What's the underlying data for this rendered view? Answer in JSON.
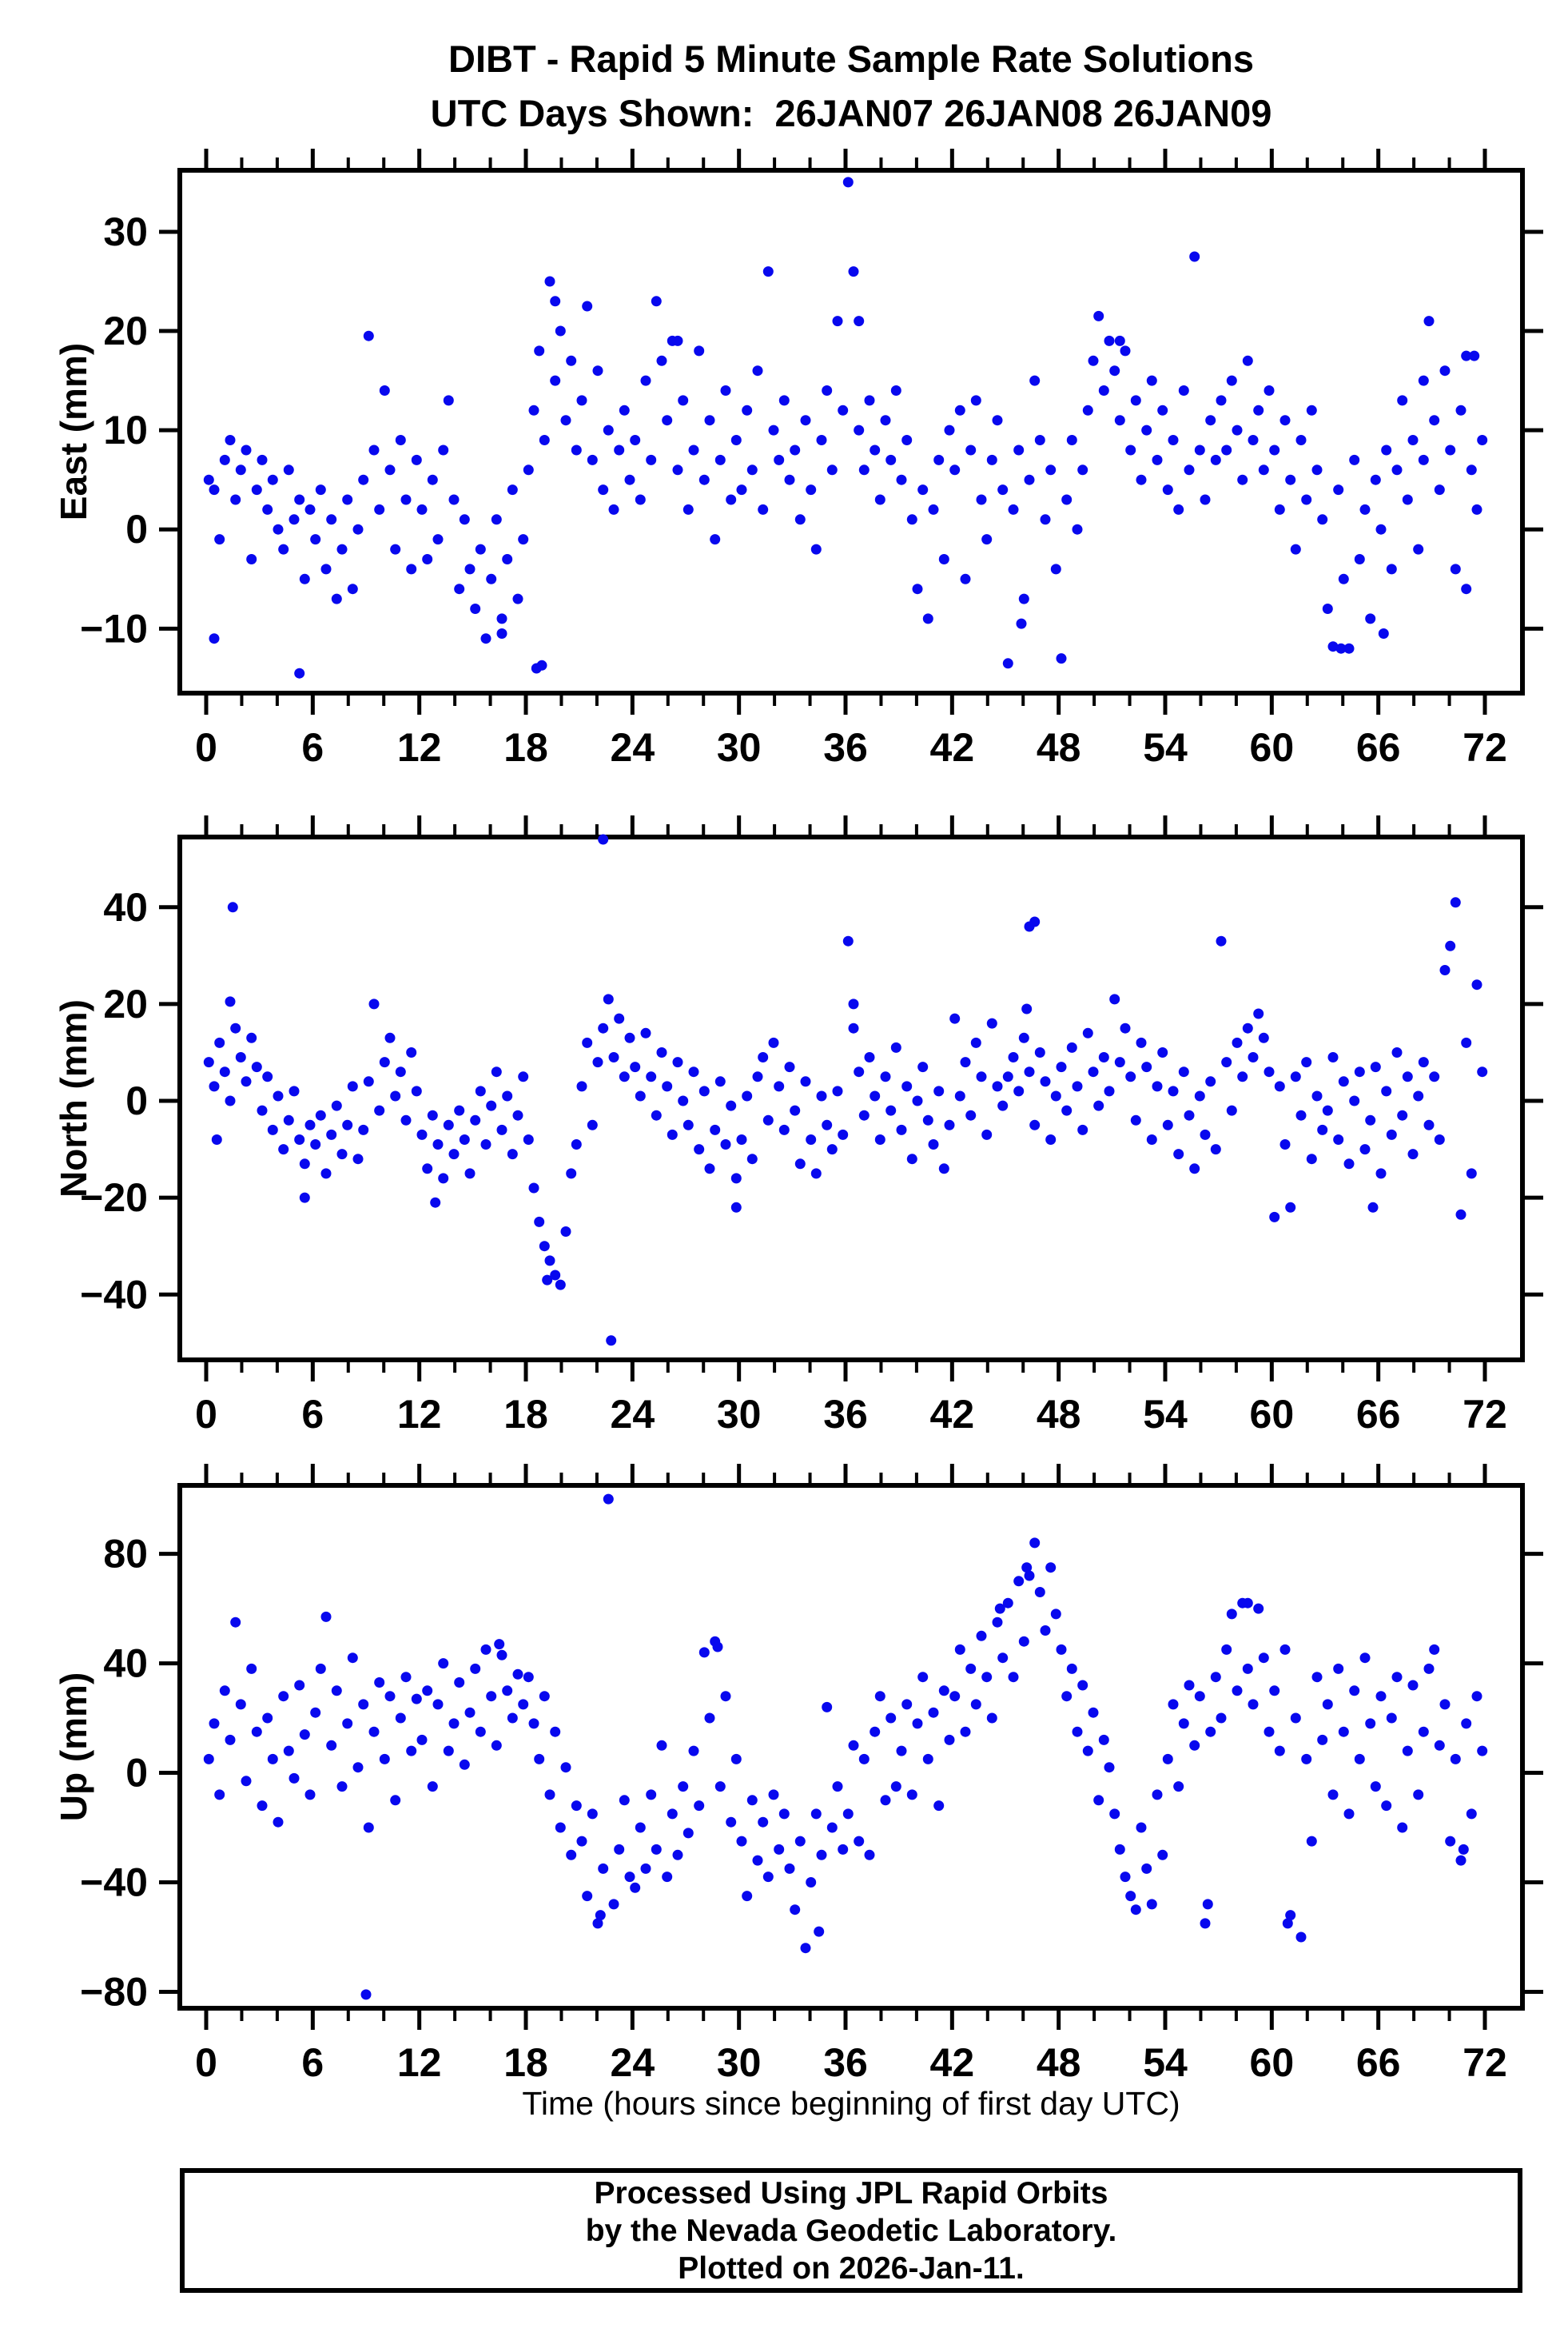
{
  "title": {
    "line1": "DIBT - Rapid 5 Minute Sample Rate Solutions",
    "line2": "UTC Days Shown:  26JAN07 26JAN08 26JAN09"
  },
  "x_axis": {
    "label": "Time (hours since beginning of first day UTC)",
    "range": [
      -1.5,
      74.1
    ],
    "ticks_major": [
      0,
      6,
      12,
      18,
      24,
      30,
      36,
      42,
      48,
      54,
      60,
      66,
      72
    ],
    "minor_step": 2
  },
  "footer": {
    "line1": "Processed Using JPL Rapid Orbits",
    "line2": "by the Nevada Geodetic Laboratory.",
    "line3": "Plotted on 2026-Jan-11."
  },
  "style": {
    "marker_color": "#0808EE",
    "axis_color": "#000000",
    "background": "#ffffff",
    "marker_radius": 6.5
  },
  "chart_data": [
    {
      "type": "scatter",
      "name": "east",
      "ylabel": "East (mm)",
      "ylim": [
        -16.5,
        36.2
      ],
      "yticks": [
        30,
        20,
        10,
        0,
        -10
      ],
      "x_start": 0.15,
      "x_step": 0.3,
      "values": [
        5,
        4,
        -1,
        7,
        9,
        3,
        6,
        8,
        -3,
        4,
        7,
        2,
        5,
        0,
        -2,
        6,
        1,
        3,
        -5,
        2,
        -1,
        4,
        -4,
        1,
        -7,
        -2,
        3,
        -6,
        0,
        5,
        19.5,
        8,
        2,
        14,
        6,
        -2,
        9,
        3,
        -4,
        7,
        2,
        -3,
        5,
        -1,
        8,
        13,
        3,
        -6,
        1,
        -4,
        -8,
        -2,
        -11,
        -5,
        1,
        -9,
        -3,
        4,
        -7,
        -1,
        6,
        12,
        18,
        9,
        25,
        15,
        20,
        11,
        17,
        8,
        13,
        22.5,
        7,
        16,
        4,
        10,
        2,
        8,
        12,
        5,
        9,
        3,
        15,
        7,
        23,
        17,
        11,
        19,
        6,
        13,
        2,
        8,
        18,
        5,
        11,
        -1,
        7,
        14,
        3,
        9,
        4,
        12,
        6,
        16,
        2,
        26,
        10,
        7,
        13,
        5,
        8,
        1,
        11,
        4,
        -2,
        9,
        14,
        6,
        21,
        12,
        35,
        26,
        10,
        6,
        13,
        8,
        3,
        11,
        7,
        14,
        5,
        9,
        1,
        -6,
        4,
        -9,
        2,
        7,
        -3,
        10,
        6,
        12,
        -5,
        8,
        13,
        3,
        -1,
        7,
        11,
        4,
        -13.5,
        2,
        8,
        -7,
        5,
        15,
        9,
        1,
        6,
        -4,
        -13,
        3,
        9,
        0,
        6,
        12,
        17,
        21.5,
        14,
        19,
        16,
        11,
        18,
        8,
        13,
        5,
        10,
        15,
        7,
        12,
        4,
        9,
        2,
        14,
        6,
        27.5,
        8,
        3,
        11,
        7,
        13,
        8,
        15,
        10,
        5,
        17,
        9,
        12,
        6,
        14,
        8,
        2,
        11,
        5,
        -2,
        9,
        3,
        12,
        6,
        1,
        -8,
        -11.8,
        4,
        -5,
        -12,
        7,
        -3,
        2,
        -9,
        5,
        0,
        8,
        -4,
        6,
        13,
        3,
        9,
        -2,
        7,
        21,
        11,
        4,
        16,
        8,
        -4,
        12,
        17.5,
        6,
        2,
        9
      ],
      "outliers": [
        [
          0.45,
          -11
        ],
        [
          5.25,
          -14.5
        ],
        [
          16.65,
          -10.5
        ],
        [
          18.6,
          -14
        ],
        [
          18.9,
          -13.7
        ],
        [
          19.65,
          23
        ],
        [
          26.55,
          19
        ],
        [
          36.75,
          21
        ],
        [
          45.9,
          -9.5
        ],
        [
          51.45,
          19
        ],
        [
          63.9,
          -12
        ],
        [
          66.3,
          -10.5
        ],
        [
          68.55,
          15
        ],
        [
          70.95,
          -6
        ],
        [
          71.4,
          17.5
        ]
      ]
    },
    {
      "type": "scatter",
      "name": "north",
      "ylabel": "North (mm)",
      "ylim": [
        -53.5,
        54.5
      ],
      "yticks": [
        40,
        20,
        0,
        -20,
        -40
      ],
      "x_start": 0.15,
      "x_step": 0.3,
      "values": [
        8,
        3,
        12,
        6,
        0,
        15,
        9,
        4,
        13,
        7,
        -2,
        5,
        -6,
        1,
        -10,
        -4,
        2,
        -8,
        -13,
        -5,
        -9,
        -3,
        -15,
        -7,
        -1,
        -11,
        -5,
        3,
        -12,
        -6,
        4,
        20,
        -2,
        8,
        13,
        1,
        6,
        -4,
        10,
        2,
        -7,
        -14,
        -3,
        -9,
        -16,
        -5,
        -11,
        -2,
        -8,
        -15,
        -4,
        2,
        -9,
        -1,
        6,
        -6,
        1,
        -11,
        -3,
        5,
        -8,
        -18,
        -25,
        -30,
        -33,
        -36,
        -38,
        -27,
        -15,
        -9,
        3,
        12,
        -5,
        8,
        15,
        21,
        9,
        17,
        5,
        13,
        7,
        1,
        14,
        5,
        -3,
        10,
        3,
        -7,
        8,
        0,
        -5,
        6,
        -10,
        2,
        -14,
        -6,
        4,
        -9,
        -1,
        -16,
        -8,
        1,
        -12,
        5,
        9,
        -4,
        12,
        3,
        -6,
        7,
        -2,
        -13,
        4,
        -8,
        -15,
        1,
        -5,
        -10,
        2,
        -7,
        33,
        15,
        6,
        -3,
        9,
        1,
        -8,
        5,
        -2,
        11,
        -6,
        3,
        -12,
        0,
        7,
        -4,
        -9,
        2,
        -14,
        -5,
        17,
        1,
        8,
        -3,
        12,
        5,
        -7,
        16,
        3,
        -1,
        5,
        9,
        2,
        13,
        6,
        -5,
        10,
        4,
        -8,
        1,
        7,
        -2,
        11,
        3,
        -6,
        14,
        6,
        -1,
        9,
        2,
        21,
        8,
        15,
        5,
        -4,
        12,
        7,
        -8,
        3,
        10,
        -5,
        2,
        -11,
        6,
        -3,
        -14,
        1,
        -7,
        4,
        -10,
        33,
        8,
        -2,
        12,
        5,
        15,
        9,
        18,
        13,
        6,
        -24,
        3,
        -9,
        -22,
        5,
        -3,
        8,
        -12,
        1,
        -6,
        -2,
        9,
        -8,
        4,
        -13,
        0,
        6,
        -10,
        -4,
        7,
        -15,
        2,
        -7,
        10,
        -3,
        5,
        -11,
        1,
        8,
        -5,
        5,
        -8,
        27,
        32,
        41,
        -23.5,
        12,
        -15,
        24,
        6
      ],
      "outliers": [
        [
          0.6,
          -8
        ],
        [
          1.35,
          20.5
        ],
        [
          1.5,
          40
        ],
        [
          5.55,
          -20
        ],
        [
          12.9,
          -21
        ],
        [
          19.2,
          -37
        ],
        [
          22.35,
          54
        ],
        [
          22.8,
          -49.5
        ],
        [
          29.85,
          -22
        ],
        [
          36.45,
          20
        ],
        [
          46.2,
          19
        ],
        [
          46.35,
          36
        ],
        [
          46.65,
          37
        ],
        [
          65.7,
          -22
        ]
      ]
    },
    {
      "type": "scatter",
      "name": "up",
      "ylabel": "Up (mm)",
      "ylim": [
        -86,
        105
      ],
      "yticks": [
        80,
        40,
        0,
        -40,
        -80
      ],
      "x_start": 0.15,
      "x_step": 0.3,
      "values": [
        5,
        18,
        -8,
        30,
        12,
        55,
        25,
        -3,
        38,
        15,
        -12,
        20,
        5,
        -18,
        28,
        8,
        -2,
        32,
        14,
        -8,
        22,
        38,
        57,
        10,
        30,
        -5,
        18,
        42,
        2,
        25,
        -20,
        15,
        33,
        5,
        28,
        -10,
        20,
        35,
        8,
        27,
        12,
        30,
        -5,
        25,
        40,
        8,
        18,
        33,
        3,
        22,
        38,
        15,
        45,
        28,
        10,
        43,
        30,
        20,
        36,
        25,
        35,
        18,
        5,
        28,
        -8,
        15,
        -20,
        2,
        -30,
        -12,
        -25,
        -45,
        -15,
        -55,
        -35,
        100,
        -48,
        -28,
        -10,
        -38,
        -42,
        -20,
        -35,
        -8,
        -28,
        10,
        -38,
        -15,
        -30,
        -5,
        -22,
        8,
        -12,
        44,
        20,
        48,
        -5,
        28,
        -18,
        5,
        -25,
        -45,
        -10,
        -32,
        -18,
        -38,
        -8,
        -28,
        -15,
        -35,
        -50,
        -25,
        -64,
        -40,
        -15,
        -30,
        24,
        -20,
        -5,
        -28,
        -15,
        10,
        -25,
        5,
        -30,
        15,
        28,
        -10,
        20,
        -5,
        8,
        25,
        -8,
        18,
        35,
        5,
        22,
        -12,
        30,
        12,
        28,
        45,
        15,
        38,
        25,
        50,
        35,
        20,
        55,
        42,
        62,
        35,
        70,
        48,
        72,
        84,
        66,
        52,
        75,
        58,
        45,
        28,
        38,
        15,
        32,
        8,
        22,
        -10,
        12,
        2,
        -15,
        -28,
        -38,
        -45,
        -50,
        -20,
        -35,
        -48,
        -8,
        -30,
        5,
        25,
        -5,
        18,
        32,
        10,
        28,
        -55,
        15,
        35,
        20,
        45,
        58,
        30,
        62,
        38,
        25,
        60,
        42,
        15,
        30,
        8,
        45,
        -52,
        20,
        -60,
        5,
        -25,
        35,
        12,
        25,
        -8,
        38,
        15,
        -15,
        30,
        5,
        42,
        18,
        -5,
        28,
        -12,
        20,
        35,
        -20,
        8,
        32,
        -8,
        15,
        38,
        45,
        10,
        25,
        -25,
        5,
        -32,
        18,
        -15,
        28,
        8
      ],
      "outliers": [
        [
          9.0,
          -81
        ],
        [
          16.5,
          47
        ],
        [
          22.2,
          -52
        ],
        [
          28.8,
          46
        ],
        [
          34.5,
          -58
        ],
        [
          44.7,
          60
        ],
        [
          46.2,
          75
        ],
        [
          56.4,
          -48
        ],
        [
          58.65,
          62
        ],
        [
          60.9,
          -55
        ],
        [
          70.8,
          -28
        ]
      ]
    }
  ]
}
